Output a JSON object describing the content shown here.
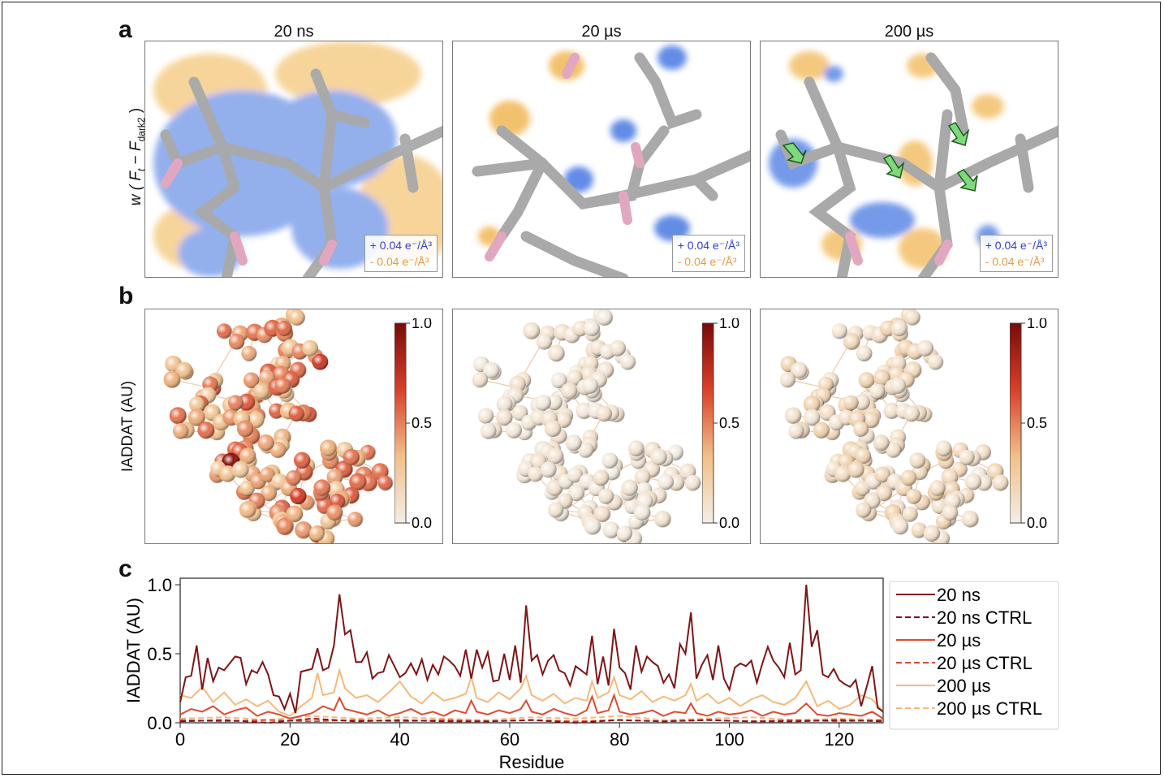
{
  "figure": {
    "panel_labels": {
      "a": "a",
      "b": "b",
      "c": "c"
    },
    "columns": [
      "20 ns",
      "20 µs",
      "200 µs"
    ],
    "row_a": {
      "ylabel_parts": {
        "pre": "w ( ",
        "ft": "F",
        "ft_sub": "t",
        "mid": " − ",
        "fd": "F",
        "fd_sub": "dark2",
        "post": " )"
      },
      "legend_pos": "+ 0.04 e⁻/Å³",
      "legend_neg": "- 0.04 e⁻/Å³",
      "colors": {
        "positive": "#3a6fe0",
        "negative": "#f0b24a",
        "stick": "#a9a9a9"
      }
    },
    "row_b": {
      "ylabel": "IADDAT (AU)",
      "colorbar_ticks": [
        "1.0",
        "0.5",
        "0.0"
      ],
      "colormap": [
        "#f3eee6",
        "#f2c08a",
        "#d9402a",
        "#7a0a0a"
      ]
    }
  },
  "chart_data": {
    "type": "line",
    "xlabel": "Residue",
    "ylabel": "IADDAT (AU)",
    "xlim": [
      0,
      128
    ],
    "ylim": [
      0,
      1.0
    ],
    "xticks": [
      0,
      20,
      40,
      60,
      80,
      100,
      120
    ],
    "yticks": [
      0.0,
      0.5,
      1.0
    ],
    "xtick_labels": [
      "0",
      "20",
      "40",
      "60",
      "80",
      "100",
      "120"
    ],
    "ytick_labels": [
      "0.0",
      "0.5",
      "1.0"
    ],
    "legend_position": "right",
    "series": [
      {
        "name": "20 ns",
        "color": "#7f1416",
        "dash": "solid",
        "x": [
          0,
          1,
          2,
          3,
          4,
          5,
          6,
          7,
          8,
          9,
          10,
          11,
          12,
          13,
          14,
          15,
          16,
          17,
          18,
          19,
          20,
          21,
          22,
          23,
          24,
          25,
          26,
          27,
          28,
          29,
          30,
          31,
          32,
          33,
          34,
          35,
          36,
          37,
          38,
          39,
          40,
          41,
          42,
          43,
          44,
          45,
          46,
          47,
          48,
          49,
          50,
          51,
          52,
          53,
          54,
          55,
          56,
          57,
          58,
          59,
          60,
          61,
          62,
          63,
          64,
          65,
          66,
          67,
          68,
          69,
          70,
          71,
          72,
          73,
          74,
          75,
          76,
          77,
          78,
          79,
          80,
          81,
          82,
          83,
          84,
          85,
          86,
          87,
          88,
          89,
          90,
          91,
          92,
          93,
          94,
          95,
          96,
          97,
          98,
          99,
          100,
          101,
          102,
          103,
          104,
          105,
          106,
          107,
          108,
          109,
          110,
          111,
          112,
          113,
          114,
          115,
          116,
          117,
          118,
          119,
          120,
          121,
          122,
          123,
          124,
          125,
          126,
          127,
          128
        ],
        "y": [
          0.15,
          0.33,
          0.34,
          0.56,
          0.24,
          0.47,
          0.3,
          0.4,
          0.38,
          0.43,
          0.48,
          0.47,
          0.28,
          0.38,
          0.36,
          0.44,
          0.35,
          0.2,
          0.19,
          0.1,
          0.21,
          0.07,
          0.37,
          0.38,
          0.39,
          0.54,
          0.38,
          0.4,
          0.56,
          0.93,
          0.64,
          0.67,
          0.44,
          0.44,
          0.51,
          0.32,
          0.36,
          0.37,
          0.49,
          0.41,
          0.33,
          0.36,
          0.43,
          0.35,
          0.46,
          0.31,
          0.42,
          0.35,
          0.48,
          0.45,
          0.41,
          0.34,
          0.53,
          0.32,
          0.53,
          0.4,
          0.51,
          0.3,
          0.31,
          0.5,
          0.31,
          0.56,
          0.29,
          0.85,
          0.45,
          0.49,
          0.35,
          0.45,
          0.49,
          0.38,
          0.36,
          0.27,
          0.41,
          0.38,
          0.35,
          0.63,
          0.28,
          0.48,
          0.27,
          0.68,
          0.4,
          0.36,
          0.24,
          0.56,
          0.37,
          0.48,
          0.44,
          0.41,
          0.29,
          0.35,
          0.25,
          0.57,
          0.5,
          0.8,
          0.32,
          0.42,
          0.49,
          0.31,
          0.56,
          0.32,
          0.24,
          0.4,
          0.43,
          0.41,
          0.45,
          0.29,
          0.43,
          0.55,
          0.45,
          0.4,
          0.33,
          0.58,
          0.35,
          0.38,
          1.0,
          0.55,
          0.67,
          0.35,
          0.33,
          0.39,
          0.31,
          0.28,
          0.26,
          0.31,
          0.12,
          0.26,
          0.41,
          0.11,
          0.08
        ]
      },
      {
        "name": "20 ns CTRL",
        "color": "#7f1416",
        "dash": "dashed",
        "x": [
          0,
          8,
          16,
          24,
          32,
          40,
          48,
          56,
          64,
          72,
          80,
          88,
          96,
          104,
          112,
          120,
          128
        ],
        "y": [
          0.01,
          0.02,
          0.0,
          0.03,
          0.01,
          0.02,
          0.01,
          0.01,
          0.02,
          0.0,
          0.02,
          0.01,
          0.02,
          0.01,
          0.01,
          0.02,
          0.01
        ]
      },
      {
        "name": "20 µs",
        "color": "#e04a30",
        "dash": "solid",
        "x": [
          0,
          2,
          4,
          6,
          8,
          10,
          12,
          14,
          16,
          18,
          20,
          22,
          24,
          26,
          28,
          29,
          30,
          32,
          34,
          36,
          38,
          40,
          42,
          44,
          46,
          48,
          50,
          52,
          53,
          54,
          56,
          58,
          60,
          62,
          63,
          64,
          66,
          68,
          70,
          72,
          74,
          75,
          76,
          78,
          79,
          80,
          82,
          84,
          86,
          88,
          90,
          92,
          93,
          94,
          96,
          98,
          100,
          102,
          104,
          106,
          108,
          110,
          112,
          114,
          116,
          118,
          120,
          122,
          124,
          126,
          128
        ],
        "y": [
          0.06,
          0.1,
          0.08,
          0.12,
          0.06,
          0.09,
          0.11,
          0.05,
          0.08,
          0.06,
          0.03,
          0.05,
          0.07,
          0.12,
          0.09,
          0.18,
          0.1,
          0.08,
          0.06,
          0.09,
          0.05,
          0.07,
          0.1,
          0.06,
          0.08,
          0.05,
          0.09,
          0.07,
          0.16,
          0.08,
          0.06,
          0.09,
          0.07,
          0.1,
          0.16,
          0.08,
          0.06,
          0.1,
          0.07,
          0.05,
          0.09,
          0.19,
          0.07,
          0.09,
          0.2,
          0.08,
          0.06,
          0.07,
          0.09,
          0.05,
          0.08,
          0.07,
          0.14,
          0.07,
          0.05,
          0.08,
          0.06,
          0.07,
          0.09,
          0.05,
          0.08,
          0.06,
          0.07,
          0.14,
          0.06,
          0.05,
          0.07,
          0.06,
          0.05,
          0.08,
          0.03
        ]
      },
      {
        "name": "20 µs CTRL",
        "color": "#e04a30",
        "dash": "dashed",
        "x": [
          0,
          8,
          16,
          24,
          32,
          40,
          48,
          56,
          64,
          72,
          80,
          88,
          96,
          104,
          112,
          120,
          128
        ],
        "y": [
          0.02,
          0.01,
          0.02,
          0.01,
          0.02,
          0.01,
          0.02,
          0.01,
          0.02,
          0.01,
          0.02,
          0.01,
          0.02,
          0.01,
          0.02,
          0.01,
          0.02
        ]
      },
      {
        "name": "200 µs",
        "color": "#f5b97a",
        "dash": "solid",
        "x": [
          0,
          2,
          4,
          6,
          8,
          10,
          12,
          14,
          16,
          18,
          20,
          22,
          24,
          25,
          26,
          28,
          29,
          30,
          32,
          34,
          36,
          38,
          40,
          42,
          44,
          46,
          48,
          50,
          52,
          53,
          54,
          56,
          58,
          60,
          62,
          63,
          64,
          66,
          68,
          70,
          72,
          74,
          75,
          76,
          78,
          79,
          80,
          82,
          84,
          86,
          88,
          90,
          92,
          93,
          94,
          96,
          98,
          100,
          102,
          104,
          106,
          108,
          110,
          112,
          114,
          116,
          118,
          120,
          122,
          124,
          126,
          128
        ],
        "y": [
          0.2,
          0.18,
          0.26,
          0.15,
          0.22,
          0.13,
          0.17,
          0.12,
          0.16,
          0.08,
          0.05,
          0.12,
          0.18,
          0.36,
          0.2,
          0.22,
          0.38,
          0.25,
          0.18,
          0.2,
          0.15,
          0.22,
          0.3,
          0.19,
          0.14,
          0.22,
          0.16,
          0.18,
          0.21,
          0.33,
          0.18,
          0.15,
          0.22,
          0.17,
          0.25,
          0.34,
          0.2,
          0.16,
          0.21,
          0.14,
          0.18,
          0.16,
          0.3,
          0.18,
          0.22,
          0.33,
          0.2,
          0.17,
          0.23,
          0.15,
          0.19,
          0.16,
          0.2,
          0.28,
          0.16,
          0.21,
          0.14,
          0.18,
          0.12,
          0.17,
          0.2,
          0.15,
          0.13,
          0.18,
          0.3,
          0.12,
          0.16,
          0.1,
          0.13,
          0.2,
          0.17,
          0.08
        ]
      },
      {
        "name": "200 µs CTRL",
        "color": "#f5b97a",
        "dash": "dashed",
        "x": [
          0,
          8,
          16,
          24,
          32,
          40,
          48,
          56,
          64,
          72,
          80,
          88,
          96,
          104,
          112,
          120,
          128
        ],
        "y": [
          0.03,
          0.04,
          0.02,
          0.05,
          0.03,
          0.04,
          0.03,
          0.02,
          0.04,
          0.03,
          0.05,
          0.02,
          0.03,
          0.04,
          0.02,
          0.03,
          0.02
        ]
      }
    ]
  }
}
